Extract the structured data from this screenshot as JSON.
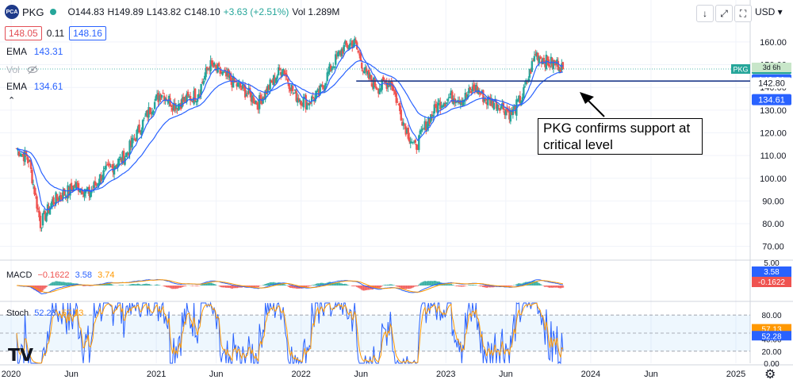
{
  "header": {
    "logo_text": "PCA",
    "symbol": "PKG",
    "ohlc": {
      "open": "O144.83",
      "high": "H149.89",
      "low": "L143.82",
      "close": "C148.10",
      "change": "+3.63 (+2.51%)",
      "volume": "Vol 1.289M"
    },
    "bid": "148.05",
    "spread": "0.11",
    "ask": "148.16",
    "currency": "USD",
    "buttons": {
      "down": "↓",
      "expand": "⤢",
      "screen": "⛶"
    }
  },
  "legends": {
    "ema1": {
      "label": "EMA",
      "value": "143.31",
      "color": "#2962ff"
    },
    "vol": {
      "label": "Vol"
    },
    "ema2": {
      "label": "EMA",
      "value": "134.61",
      "color": "#2962ff"
    },
    "collapse": "⌃",
    "macd": {
      "label": "MACD",
      "v1": "−0.1622",
      "v2": "3.58",
      "v3": "3.74"
    },
    "stoch": {
      "label": "Stoch",
      "v1": "52.28",
      "v2": "57.13"
    }
  },
  "annotation": {
    "line1": "PKG confirms support at",
    "line2": "critical level"
  },
  "colors": {
    "up": "#26a69a",
    "down": "#ef5350",
    "ema": "#2962ff",
    "orange": "#ff9800",
    "support": "#1e3a8a"
  },
  "chart_data": {
    "type": "candlestick",
    "symbol": "PKG",
    "timeframe": "3d 6h",
    "x_ticks": [
      "2020",
      "Jun",
      "2021",
      "Jun",
      "2022",
      "Jun",
      "2023",
      "Jun",
      "2024",
      "Jun",
      "2025"
    ],
    "price_axis": {
      "ticks": [
        "160.00",
        "150.00",
        "140.00",
        "130.00",
        "120.00",
        "110.00",
        "100.00",
        "90.00",
        "80.00",
        "70.00"
      ],
      "ylim": [
        65,
        168
      ]
    },
    "markers": {
      "last_price": {
        "label": "PKG",
        "value": "148.10",
        "sub": "3d 6h"
      },
      "ema_fast": {
        "value": "143.31"
      },
      "support": {
        "value": "142.80"
      },
      "ema_slow": {
        "value": "134.61"
      }
    },
    "support_level": 142.8,
    "price_anchors": [
      [
        "2020-01",
        113
      ],
      [
        "2020-02",
        108
      ],
      [
        "2020-03",
        80
      ],
      [
        "2020-04",
        90
      ],
      [
        "2020-06",
        97
      ],
      [
        "2020-07",
        93
      ],
      [
        "2020-08",
        101
      ],
      [
        "2020-10",
        110
      ],
      [
        "2020-12",
        130
      ],
      [
        "2021-01",
        138
      ],
      [
        "2021-02",
        132
      ],
      [
        "2021-04",
        137
      ],
      [
        "2021-05",
        150
      ],
      [
        "2021-06",
        146
      ],
      [
        "2021-08",
        138
      ],
      [
        "2021-09",
        133
      ],
      [
        "2021-10",
        141
      ],
      [
        "2021-11",
        149
      ],
      [
        "2021-12",
        137
      ],
      [
        "2022-01",
        133
      ],
      [
        "2022-02",
        137
      ],
      [
        "2022-03",
        148
      ],
      [
        "2022-04",
        157
      ],
      [
        "2022-05",
        160
      ],
      [
        "2022-06",
        145
      ],
      [
        "2022-07",
        140
      ],
      [
        "2022-08",
        143
      ],
      [
        "2022-09",
        125
      ],
      [
        "2022-10",
        113
      ],
      [
        "2022-11",
        125
      ],
      [
        "2022-12",
        133
      ],
      [
        "2023-01",
        136
      ],
      [
        "2023-02",
        135
      ],
      [
        "2023-03",
        140
      ],
      [
        "2023-04",
        134
      ],
      [
        "2023-05",
        133
      ],
      [
        "2023-06",
        128
      ],
      [
        "2023-07",
        137
      ],
      [
        "2023-08",
        155
      ],
      [
        "2023-09",
        151
      ],
      [
        "2023-10",
        150
      ],
      [
        "2023-10-25",
        148.1
      ]
    ],
    "macd": {
      "values": [
        "-0.1622",
        "3.58",
        "3.74"
      ],
      "axis_top": "5.00"
    },
    "stoch": {
      "values": [
        "52.28",
        "57.13"
      ],
      "ticks": [
        "80.00",
        "60.00",
        "40.00",
        "20.00",
        "0.00"
      ],
      "band": [
        20,
        80
      ]
    }
  }
}
